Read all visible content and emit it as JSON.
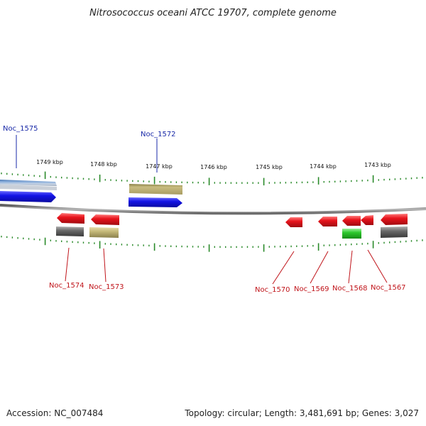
{
  "title": "Nitrosococcus oceani ATCC 19707, complete genome",
  "footer": {
    "accession": "Accession: NC_007484",
    "summary": "Topology: circular; Length: 3,481,691 bp; Genes: 3,027"
  },
  "scale_labels": [
    "1749 kbp",
    "1748 kbp",
    "1747 kbp",
    "1746 kbp",
    "1745 kbp",
    "1744 kbp",
    "1743 kbp"
  ],
  "colors": {
    "blue_gene": "#1414e6",
    "red_gene": "#e8141c",
    "gray_gene": "#6a6a6a",
    "olive_gene": "#c4b878",
    "green_gene": "#2cc82c",
    "steelblue_gene": "#6e96c8",
    "tick": "#2a8a2a",
    "backbone": "#8c8c8c"
  },
  "gene_labels": [
    {
      "id": "g1575",
      "name": "Noc_1575",
      "strand": "forward"
    },
    {
      "id": "g1572",
      "name": "Noc_1572",
      "strand": "forward"
    },
    {
      "id": "g1574",
      "name": "Noc_1574",
      "strand": "reverse"
    },
    {
      "id": "g1573",
      "name": "Noc_1573",
      "strand": "reverse"
    },
    {
      "id": "g1570",
      "name": "Noc_1570",
      "strand": "reverse"
    },
    {
      "id": "g1569",
      "name": "Noc_1569",
      "strand": "reverse"
    },
    {
      "id": "g1568",
      "name": "Noc_1568",
      "strand": "reverse"
    },
    {
      "id": "g1567",
      "name": "Noc_1567",
      "strand": "reverse"
    }
  ]
}
